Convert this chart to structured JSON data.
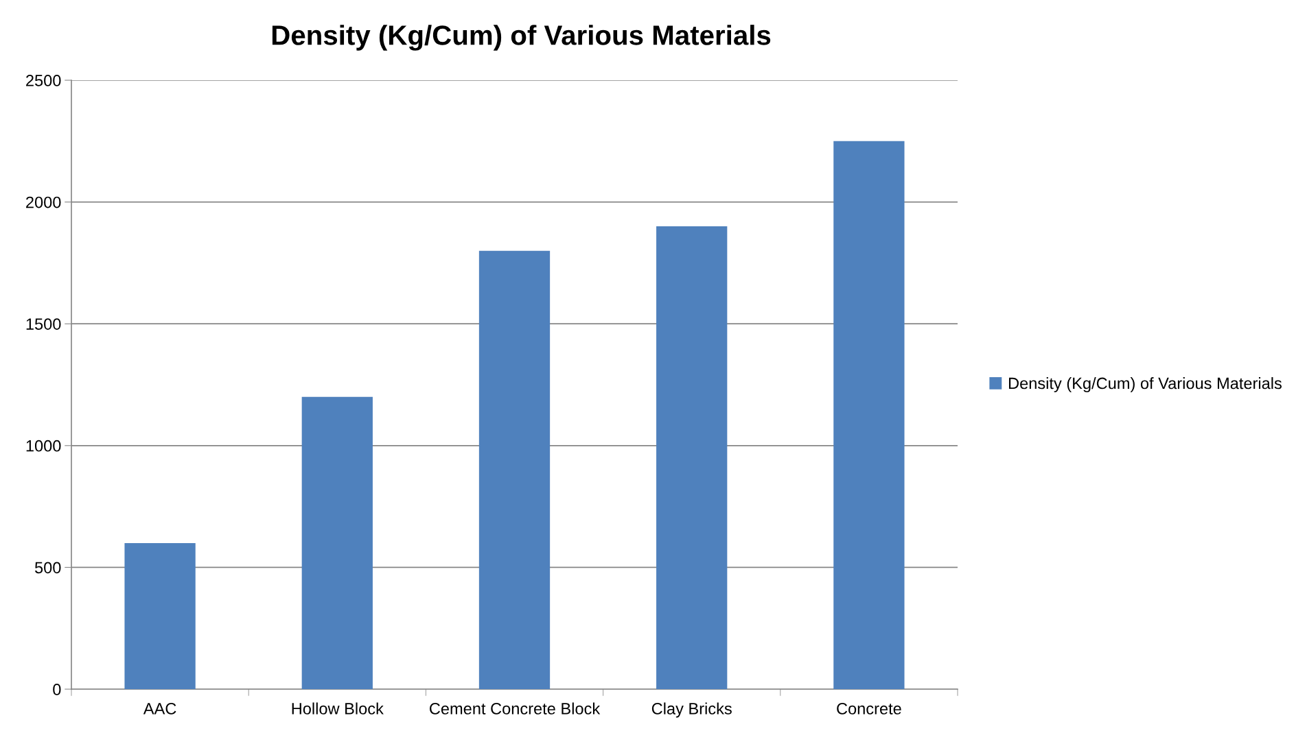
{
  "chart_data": {
    "type": "bar",
    "title": "Density (Kg/Cum) of Various Materials",
    "categories": [
      "AAC",
      "Hollow Block",
      "Cement Concrete Block",
      "Clay Bricks",
      "Concrete"
    ],
    "series": [
      {
        "name": "Density (Kg/Cum) of Various Materials",
        "color": "#4f81bd",
        "values": [
          600,
          1200,
          1800,
          1900,
          2250
        ]
      }
    ],
    "ylim": [
      0,
      2500
    ],
    "yticks": [
      0,
      500,
      1000,
      1500,
      2000,
      2500
    ],
    "grid": "y",
    "legend": "right"
  }
}
